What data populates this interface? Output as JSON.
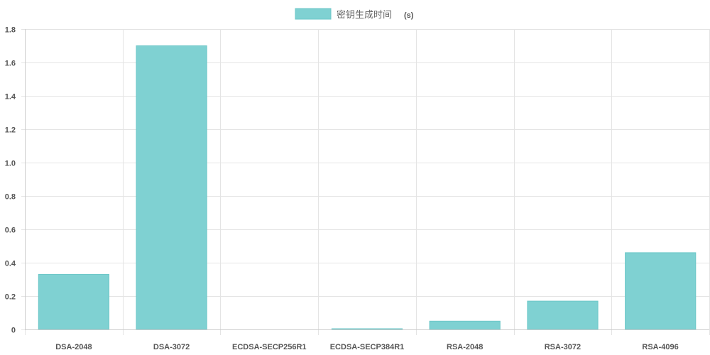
{
  "chart_data": {
    "type": "bar",
    "categories": [
      "DSA-2048",
      "DSA-3072",
      "ECDSA-SECP256R1",
      "ECDSA-SECP384R1",
      "RSA-2048",
      "RSA-3072",
      "RSA-4096"
    ],
    "series": [
      {
        "name": "密钥生成时间",
        "unit": "(s)",
        "values": [
          0.33,
          1.7,
          0.0,
          0.003,
          0.05,
          0.17,
          0.46
        ]
      }
    ],
    "y_ticks": [
      "0",
      "0.2",
      "0.4",
      "0.6",
      "0.8",
      "1.0",
      "1.2",
      "1.4",
      "1.6",
      "1.8"
    ],
    "ylim": [
      0,
      1.8
    ],
    "grid": true,
    "legend_position": "top-center",
    "colors": {
      "bar_fill": "#7fd1d2",
      "bar_stroke": "#6cc7c8",
      "grid": "#e4e4e4"
    }
  }
}
